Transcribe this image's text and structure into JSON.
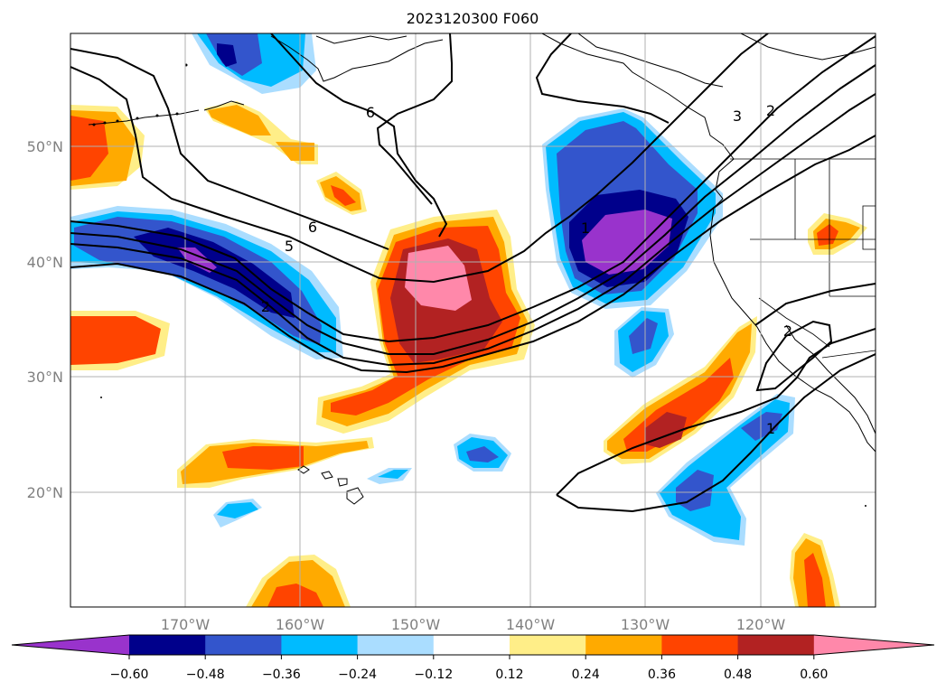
{
  "title": "2023120300 F060",
  "lat_ticks": [
    "50°N",
    "40°N",
    "30°N",
    "20°N"
  ],
  "lon_ticks": [
    "170°W",
    "160°W",
    "150°W",
    "140°W",
    "130°W",
    "120°W"
  ],
  "colorbar": {
    "colors": [
      "#9933cc",
      "#00008b",
      "#3355cc",
      "#00bbff",
      "#aaddff",
      "#ffffff",
      "#ffee88",
      "#ffaa00",
      "#ff4400",
      "#b22222",
      "#ff88aa"
    ],
    "tick_labels": [
      "−0.60",
      "−0.48",
      "−0.36",
      "−0.24",
      "−0.12",
      "0.12",
      "0.24",
      "0.36",
      "0.48",
      "0.60"
    ]
  },
  "contour_labels": [
    "6",
    "6",
    "5",
    "2",
    "3",
    "2",
    "1",
    "1",
    "2"
  ],
  "colors": {
    "contour": "#000000",
    "grid": "#b0b0b0",
    "coast": "#000000"
  }
}
